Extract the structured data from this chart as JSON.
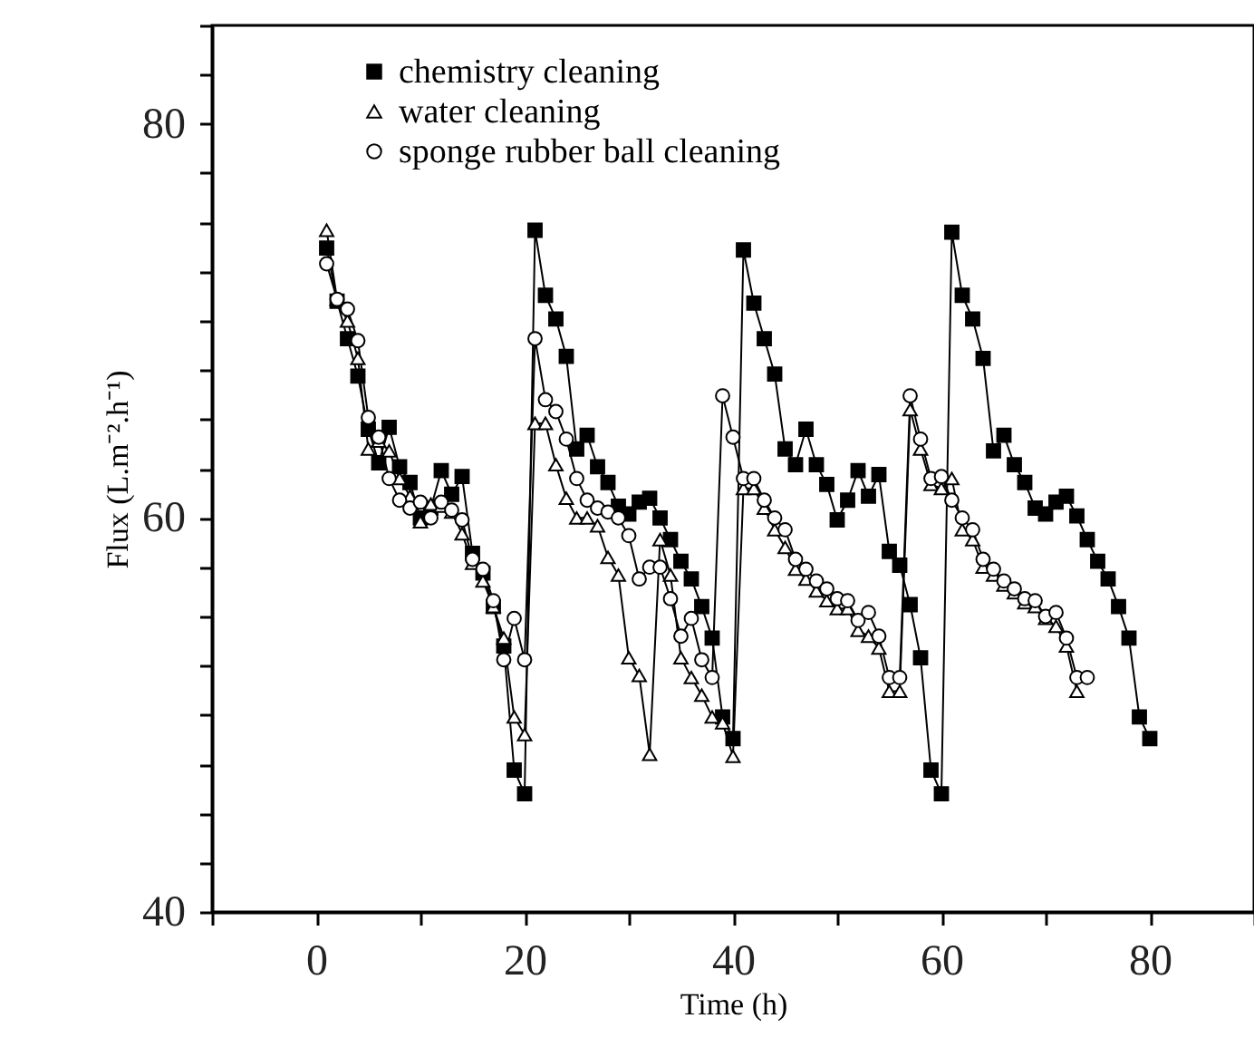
{
  "chart_data": {
    "type": "line",
    "xlabel": "Time (h)",
    "ylabel": "Flux  (L.m⁻².h⁻¹)",
    "x": [
      1,
      2,
      3,
      4,
      5,
      6,
      7,
      8,
      9,
      10,
      11,
      12,
      13,
      14,
      15,
      16,
      17,
      18,
      19,
      20,
      21,
      22,
      23,
      24,
      25,
      26,
      27,
      28,
      29,
      30,
      31,
      32,
      33,
      34,
      35,
      36,
      37,
      38,
      39,
      40,
      41,
      42,
      43,
      44,
      45,
      46,
      47,
      48,
      49,
      50,
      51,
      52,
      53,
      54,
      55,
      56,
      57,
      58,
      59,
      60,
      61,
      62,
      63,
      64,
      65,
      66,
      67,
      68,
      69,
      70,
      71,
      72,
      73,
      74,
      75,
      76,
      77,
      78,
      79,
      80
    ],
    "series": [
      {
        "name": "chemistry cleaning",
        "color": "#000000",
        "marker": "square",
        "values": [
          73.7,
          71.0,
          69.1,
          67.2,
          64.5,
          62.8,
          64.6,
          62.6,
          61.8,
          60.0,
          60.5,
          62.4,
          61.2,
          62.1,
          58.2,
          57.2,
          55.5,
          53.5,
          47.2,
          46.0,
          74.6,
          71.3,
          70.1,
          68.2,
          63.5,
          64.2,
          62.6,
          61.8,
          60.6,
          60.2,
          60.8,
          61.0,
          60.0,
          58.9,
          57.8,
          56.9,
          55.5,
          53.9,
          49.9,
          48.8,
          73.6,
          70.9,
          69.1,
          67.3,
          63.5,
          62.7,
          64.5,
          62.7,
          61.7,
          59.9,
          60.9,
          62.4,
          61.1,
          62.2,
          58.3,
          57.6,
          55.6,
          52.9,
          47.2,
          46.0,
          74.5,
          71.3,
          70.1,
          68.1,
          63.4,
          64.2,
          62.7,
          61.8,
          60.5,
          60.2,
          60.8,
          61.1,
          60.1,
          58.9,
          57.8,
          56.9,
          55.5,
          53.9,
          49.9,
          48.8
        ]
      },
      {
        "name": "water cleaning",
        "color": "#000000",
        "marker": "triangle",
        "values": [
          74.6,
          71.1,
          70.0,
          68.1,
          63.5,
          63.9,
          63.4,
          62.0,
          61.1,
          59.8,
          60.7,
          60.6,
          60.3,
          59.2,
          57.7,
          56.8,
          55.5,
          53.9,
          49.9,
          49.0,
          64.8,
          64.8,
          62.7,
          61.0,
          60.0,
          60.0,
          59.6,
          58.0,
          57.1,
          52.9,
          52.0,
          48.0,
          58.9,
          57.1,
          52.9,
          51.9,
          51.0,
          49.9,
          49.6,
          47.9,
          61.5,
          61.5,
          60.5,
          59.4,
          58.5,
          57.4,
          56.9,
          56.3,
          55.8,
          55.4,
          55.4,
          54.3,
          54.0,
          53.4,
          51.2,
          51.2,
          65.5,
          63.5,
          61.7,
          61.5,
          62.0,
          59.4,
          58.9,
          57.5,
          57.1,
          56.6,
          56.2,
          55.7,
          55.5,
          54.9,
          54.5,
          53.5,
          51.2,
          null,
          null,
          null,
          null,
          null,
          null,
          null
        ]
      },
      {
        "name": "sponge rubber ball cleaning",
        "color": "#000000",
        "marker": "circle",
        "values": [
          72.9,
          71.1,
          70.6,
          69.0,
          65.1,
          64.1,
          62.0,
          60.9,
          60.5,
          60.8,
          60.0,
          60.8,
          60.4,
          59.9,
          57.9,
          57.4,
          55.8,
          52.8,
          54.9,
          52.8,
          69.1,
          66.0,
          65.4,
          64.0,
          62.0,
          60.9,
          60.5,
          60.3,
          60.0,
          59.1,
          56.9,
          57.5,
          57.5,
          55.9,
          54.0,
          54.9,
          52.8,
          51.9,
          66.2,
          64.1,
          62.0,
          62.0,
          60.9,
          60.0,
          59.4,
          57.9,
          57.4,
          56.8,
          56.4,
          55.9,
          55.8,
          54.8,
          55.2,
          54.0,
          51.9,
          51.9,
          66.2,
          64.0,
          62.0,
          62.1,
          60.9,
          60.0,
          59.4,
          57.9,
          57.4,
          56.8,
          56.4,
          55.9,
          55.8,
          55.0,
          55.2,
          53.9,
          51.9,
          51.9,
          null,
          null,
          null,
          null,
          null,
          null
        ]
      }
    ],
    "xlim": [
      -10,
      90
    ],
    "xticks": [
      {
        "value": -10,
        "label": null
      },
      0,
      {
        "value": 10,
        "label": null
      },
      20,
      {
        "value": 30,
        "label": null
      },
      40,
      {
        "value": 50,
        "label": null
      },
      60,
      {
        "value": 70,
        "label": null
      },
      80,
      {
        "value": 90,
        "label": null
      }
    ],
    "ylim": [
      40,
      85
    ],
    "yticks": [
      40,
      {
        "value": 42.5,
        "label": null
      },
      {
        "value": 45,
        "label": null
      },
      {
        "value": 47.5,
        "label": null
      },
      {
        "value": 50,
        "label": null
      },
      {
        "value": 52.5,
        "label": null
      },
      {
        "value": 55,
        "label": null
      },
      {
        "value": 57.5,
        "label": null
      },
      60,
      {
        "value": 62.5,
        "label": null
      },
      {
        "value": 65,
        "label": null
      },
      {
        "value": 67.5,
        "label": null
      },
      {
        "value": 70,
        "label": null
      },
      {
        "value": 72.5,
        "label": null
      },
      {
        "value": 75,
        "label": null
      },
      {
        "value": 77.5,
        "label": null
      },
      80,
      {
        "value": 82.5,
        "label": null
      },
      {
        "value": 85,
        "label": null
      }
    ],
    "grid": false,
    "legend": "top left",
    "line_style": "solid"
  }
}
